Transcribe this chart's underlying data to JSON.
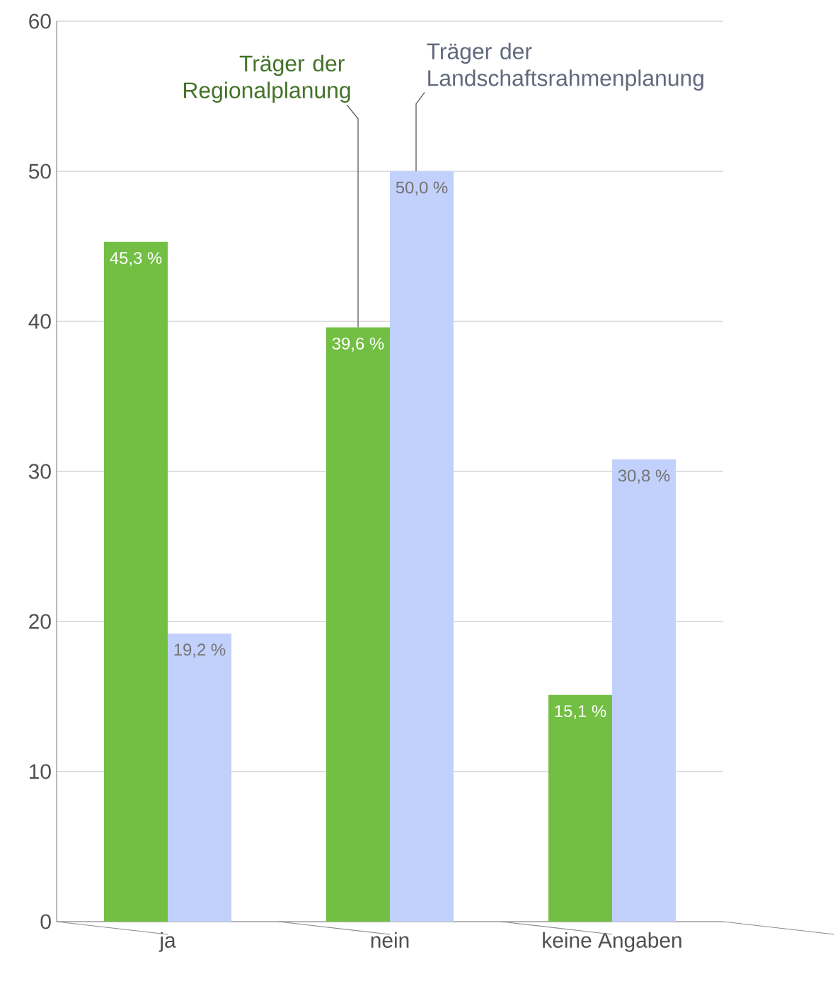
{
  "chart_data": {
    "type": "bar",
    "categories": [
      "ja",
      "nein",
      "keine Angaben"
    ],
    "series": [
      {
        "name": "Träger der Regionalplanung",
        "color": "#72bf44",
        "values": [
          45.3,
          39.6,
          15.1
        ],
        "value_labels": [
          "45,3 %",
          "39,6 %",
          "15,1 %"
        ]
      },
      {
        "name": "Träger der Landschaftsrahmenplanung",
        "color": "#c2d1fb",
        "values": [
          19.2,
          50.0,
          30.8
        ],
        "value_labels": [
          "19,2 %",
          "50,0 %",
          "30,8 %"
        ]
      }
    ],
    "ylim": [
      0,
      60
    ],
    "yticks": [
      0,
      10,
      20,
      30,
      40,
      50,
      60
    ],
    "grid": "y",
    "legend": false
  }
}
